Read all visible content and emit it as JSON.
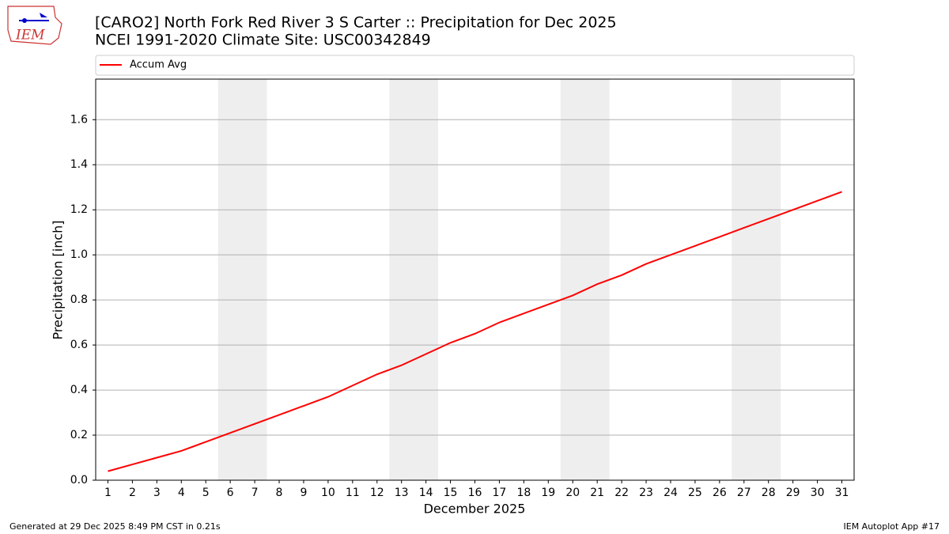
{
  "chart_data": {
    "type": "line",
    "title": "[CARO2] North Fork Red River 3 S Carter :: Precipitation for Dec 2025",
    "subtitle": "NCEI 1991-2020 Climate Site: USC00342849",
    "x_label": "December 2025",
    "y_label": "Precipitation [inch]",
    "x": [
      1,
      2,
      3,
      4,
      5,
      6,
      7,
      8,
      9,
      10,
      11,
      12,
      13,
      14,
      15,
      16,
      17,
      18,
      19,
      20,
      21,
      22,
      23,
      24,
      25,
      26,
      27,
      28,
      29,
      30,
      31
    ],
    "series": [
      {
        "name": "Accum Avg",
        "color": "#ff0000",
        "values": [
          0.04,
          0.07,
          0.1,
          0.13,
          0.17,
          0.21,
          0.25,
          0.29,
          0.33,
          0.37,
          0.42,
          0.47,
          0.51,
          0.56,
          0.61,
          0.65,
          0.7,
          0.74,
          0.78,
          0.82,
          0.87,
          0.91,
          0.96,
          1.0,
          1.04,
          1.08,
          1.12,
          1.16,
          1.2,
          1.24,
          1.28
        ]
      }
    ],
    "xlim": [
      0.5,
      31.5
    ],
    "xticks": [
      1,
      2,
      3,
      4,
      5,
      6,
      7,
      8,
      9,
      10,
      11,
      12,
      13,
      14,
      15,
      16,
      17,
      18,
      19,
      20,
      21,
      22,
      23,
      24,
      25,
      26,
      27,
      28,
      29,
      30,
      31
    ],
    "ylim": [
      0,
      1.78
    ],
    "yticks": [
      {
        "value": 0,
        "label": "0.0"
      },
      0.2,
      0.4,
      0.6,
      0.8,
      {
        "value": 1,
        "label": "1.0"
      },
      1.2,
      1.4,
      1.6
    ],
    "grid": true,
    "shaded_spans": [
      [
        5.5,
        7.5
      ],
      [
        12.5,
        14.5
      ],
      [
        19.5,
        21.5
      ],
      [
        26.5,
        28.5
      ]
    ],
    "shade_color": "#eeeeee"
  },
  "logo_text": "IEM",
  "footer_left": "Generated at 29 Dec 2025 8:49 PM CST in 0.21s",
  "footer_right": "IEM Autoplot App #17"
}
